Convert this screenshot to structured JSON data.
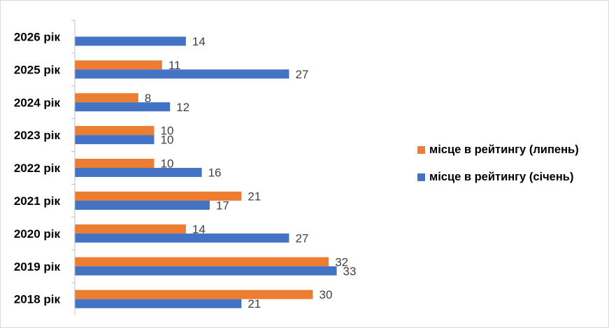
{
  "chart_data": {
    "type": "bar",
    "orientation": "horizontal",
    "title": "",
    "xlabel": "",
    "ylabel": "",
    "xlim": [
      0,
      36
    ],
    "grid": false,
    "legend_position": "right",
    "categories": [
      "2026 рік",
      "2025 рік",
      "2024 рік",
      "2023 рік",
      "2022 рік",
      "2021 рік",
      "2020 рік",
      "2019 рік",
      "2018 рік"
    ],
    "series": [
      {
        "name": "місце в рейтингу (липень)",
        "color": "#ED7D31",
        "values": [
          null,
          11,
          8,
          10,
          10,
          21,
          14,
          32,
          30
        ]
      },
      {
        "name": "місце в рейтингу (січень)",
        "color": "#4472C4",
        "values": [
          14,
          27,
          12,
          10,
          16,
          17,
          27,
          33,
          21
        ]
      }
    ],
    "legend": [
      {
        "name": "місце в рейтингу (липень)",
        "color": "#ED7D31"
      },
      {
        "name": "місце в рейтингу (січень)",
        "color": "#4472C4"
      }
    ]
  }
}
